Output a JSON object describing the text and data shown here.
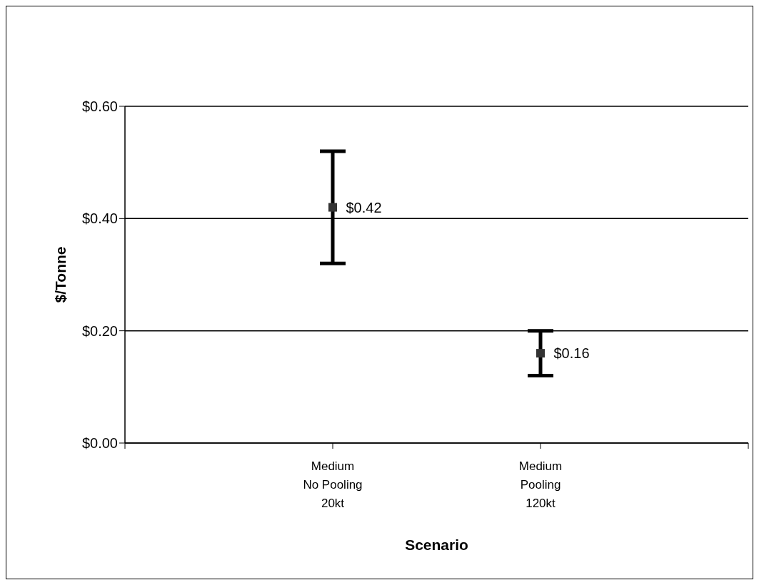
{
  "chart_data": {
    "type": "scatter",
    "xlabel": "Scenario",
    "ylabel": "$/Tonne",
    "categories": [
      null,
      "Medium\nNo Pooling\n20kt",
      "Medium\nPooling\n120kt",
      null
    ],
    "values": [
      null,
      0.42,
      0.16,
      null
    ],
    "errors": [
      null,
      [
        0.32,
        0.52
      ],
      [
        0.12,
        0.2
      ],
      null
    ],
    "value_labels": [
      null,
      "$0.42",
      "$0.16",
      null
    ],
    "color": "#333333",
    "marker": "square",
    "ylim": [
      0,
      0.6
    ],
    "yticks": [
      {
        "value": 0,
        "label": "$0.00"
      },
      {
        "value": 0.2,
        "label": "$0.20"
      },
      {
        "value": 0.4,
        "label": "$0.40"
      },
      {
        "value": 0.6,
        "label": "$0.60"
      }
    ],
    "grid": "y"
  }
}
